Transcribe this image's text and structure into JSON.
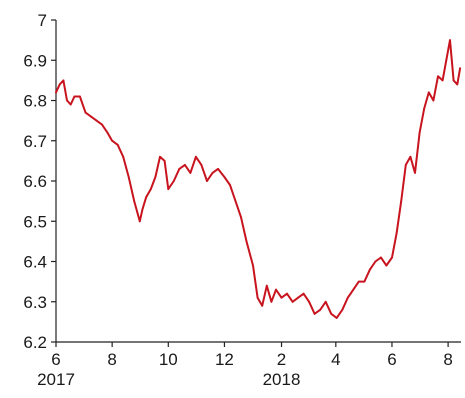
{
  "chart_data": {
    "type": "line",
    "title": "",
    "xlabel": "",
    "ylabel": "",
    "xlim": [
      "2017-06-01",
      "2018-08-15"
    ],
    "ylim": [
      6.2,
      7.0
    ],
    "x_ticks": [
      {
        "date": "2017-06-01",
        "label": "6",
        "year_label": "2017"
      },
      {
        "date": "2017-08-01",
        "label": "8",
        "year_label": ""
      },
      {
        "date": "2017-10-01",
        "label": "10",
        "year_label": ""
      },
      {
        "date": "2017-12-01",
        "label": "12",
        "year_label": ""
      },
      {
        "date": "2018-02-01",
        "label": "2",
        "year_label": "2018"
      },
      {
        "date": "2018-04-01",
        "label": "4",
        "year_label": ""
      },
      {
        "date": "2018-06-01",
        "label": "6",
        "year_label": ""
      },
      {
        "date": "2018-08-01",
        "label": "8",
        "year_label": ""
      }
    ],
    "y_ticks": [
      {
        "value": 7.0,
        "label": "7"
      },
      {
        "value": 6.9,
        "label": "6.9"
      },
      {
        "value": 6.8,
        "label": "6.8"
      },
      {
        "value": 6.7,
        "label": "6.7"
      },
      {
        "value": 6.6,
        "label": "6.6"
      },
      {
        "value": 6.5,
        "label": "6.5"
      },
      {
        "value": 6.4,
        "label": "6.4"
      },
      {
        "value": 6.3,
        "label": "6.3"
      },
      {
        "value": 6.2,
        "label": "6.2"
      }
    ],
    "grid": false,
    "legend": "none",
    "series": [
      {
        "color": "#c8141e",
        "points": [
          [
            "2017-06-01",
            6.82
          ],
          [
            "2017-06-05",
            6.84
          ],
          [
            "2017-06-09",
            6.85
          ],
          [
            "2017-06-13",
            6.8
          ],
          [
            "2017-06-17",
            6.79
          ],
          [
            "2017-06-21",
            6.81
          ],
          [
            "2017-06-27",
            6.81
          ],
          [
            "2017-07-03",
            6.77
          ],
          [
            "2017-07-09",
            6.76
          ],
          [
            "2017-07-15",
            6.75
          ],
          [
            "2017-07-21",
            6.74
          ],
          [
            "2017-07-27",
            6.72
          ],
          [
            "2017-08-01",
            6.7
          ],
          [
            "2017-08-07",
            6.69
          ],
          [
            "2017-08-13",
            6.66
          ],
          [
            "2017-08-19",
            6.61
          ],
          [
            "2017-08-25",
            6.55
          ],
          [
            "2017-08-31",
            6.5
          ],
          [
            "2017-09-03",
            6.53
          ],
          [
            "2017-09-07",
            6.56
          ],
          [
            "2017-09-12",
            6.58
          ],
          [
            "2017-09-17",
            6.61
          ],
          [
            "2017-09-22",
            6.66
          ],
          [
            "2017-09-27",
            6.65
          ],
          [
            "2017-10-01",
            6.58
          ],
          [
            "2017-10-07",
            6.6
          ],
          [
            "2017-10-13",
            6.63
          ],
          [
            "2017-10-19",
            6.64
          ],
          [
            "2017-10-25",
            6.62
          ],
          [
            "2017-10-31",
            6.66
          ],
          [
            "2017-11-06",
            6.64
          ],
          [
            "2017-11-12",
            6.6
          ],
          [
            "2017-11-18",
            6.62
          ],
          [
            "2017-11-24",
            6.63
          ],
          [
            "2017-12-01",
            6.61
          ],
          [
            "2017-12-07",
            6.59
          ],
          [
            "2017-12-13",
            6.55
          ],
          [
            "2017-12-19",
            6.51
          ],
          [
            "2017-12-25",
            6.45
          ],
          [
            "2018-01-01",
            6.39
          ],
          [
            "2018-01-06",
            6.31
          ],
          [
            "2018-01-11",
            6.29
          ],
          [
            "2018-01-16",
            6.34
          ],
          [
            "2018-01-21",
            6.3
          ],
          [
            "2018-01-26",
            6.33
          ],
          [
            "2018-02-01",
            6.31
          ],
          [
            "2018-02-07",
            6.32
          ],
          [
            "2018-02-13",
            6.3
          ],
          [
            "2018-02-19",
            6.31
          ],
          [
            "2018-02-25",
            6.32
          ],
          [
            "2018-03-03",
            6.3
          ],
          [
            "2018-03-09",
            6.27
          ],
          [
            "2018-03-15",
            6.28
          ],
          [
            "2018-03-21",
            6.3
          ],
          [
            "2018-03-27",
            6.27
          ],
          [
            "2018-04-02",
            6.26
          ],
          [
            "2018-04-08",
            6.28
          ],
          [
            "2018-04-14",
            6.31
          ],
          [
            "2018-04-20",
            6.33
          ],
          [
            "2018-04-26",
            6.35
          ],
          [
            "2018-05-02",
            6.35
          ],
          [
            "2018-05-08",
            6.38
          ],
          [
            "2018-05-14",
            6.4
          ],
          [
            "2018-05-20",
            6.41
          ],
          [
            "2018-05-26",
            6.39
          ],
          [
            "2018-06-01",
            6.41
          ],
          [
            "2018-06-06",
            6.47
          ],
          [
            "2018-06-11",
            6.55
          ],
          [
            "2018-06-16",
            6.64
          ],
          [
            "2018-06-21",
            6.66
          ],
          [
            "2018-06-26",
            6.62
          ],
          [
            "2018-07-01",
            6.72
          ],
          [
            "2018-07-06",
            6.78
          ],
          [
            "2018-07-11",
            6.82
          ],
          [
            "2018-07-16",
            6.8
          ],
          [
            "2018-07-21",
            6.86
          ],
          [
            "2018-07-26",
            6.85
          ],
          [
            "2018-07-30",
            6.9
          ],
          [
            "2018-08-03",
            6.95
          ],
          [
            "2018-08-07",
            6.85
          ],
          [
            "2018-08-11",
            6.84
          ],
          [
            "2018-08-14",
            6.88
          ]
        ]
      }
    ]
  }
}
